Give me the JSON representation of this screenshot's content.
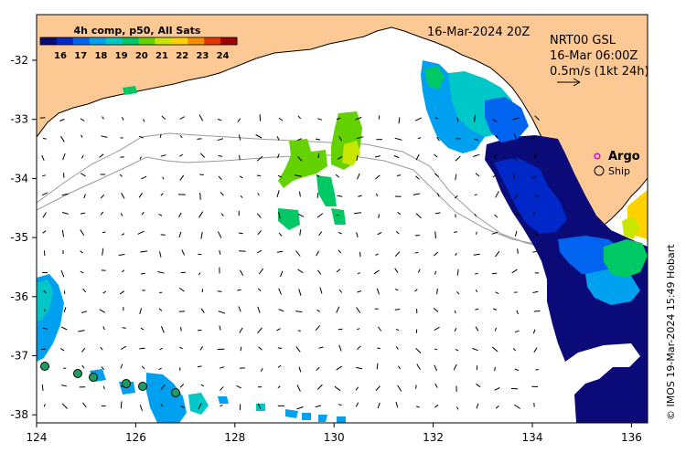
{
  "title": "4h comp, p50, All Sats",
  "date_label": "16-Mar-2024 20Z",
  "current_info": {
    "line1": "NRT00 GSL",
    "line2": "16-Mar 06:00Z",
    "line3": "0.5m/s (1kt 24h)"
  },
  "legend": {
    "argo": "Argo",
    "ship": "Ship"
  },
  "credit": "© IMOS 19-Mar-2024 15:49 Hobart",
  "colorbar": {
    "ticks": [
      "16",
      "17",
      "18",
      "19",
      "20",
      "21",
      "22",
      "23",
      "24"
    ],
    "colors": [
      "#0a0a78",
      "#0028c8",
      "#0064f0",
      "#00a0f0",
      "#00c8c8",
      "#00c864",
      "#64d200",
      "#c8e600",
      "#ffd200",
      "#ff8c00",
      "#e63200",
      "#a00000"
    ]
  },
  "x_axis": {
    "ticks": [
      "124",
      "126",
      "128",
      "130",
      "132",
      "134",
      "136"
    ]
  },
  "y_axis": {
    "ticks": [
      "-32",
      "-33",
      "-34",
      "-35",
      "-36",
      "-37",
      "-38"
    ]
  },
  "colors": {
    "land": "#fcc994",
    "coast": "#000000",
    "shelf": "#9a9a9a",
    "argo_marker": "#e000e0",
    "ship_marker": "#1e9e5e"
  }
}
